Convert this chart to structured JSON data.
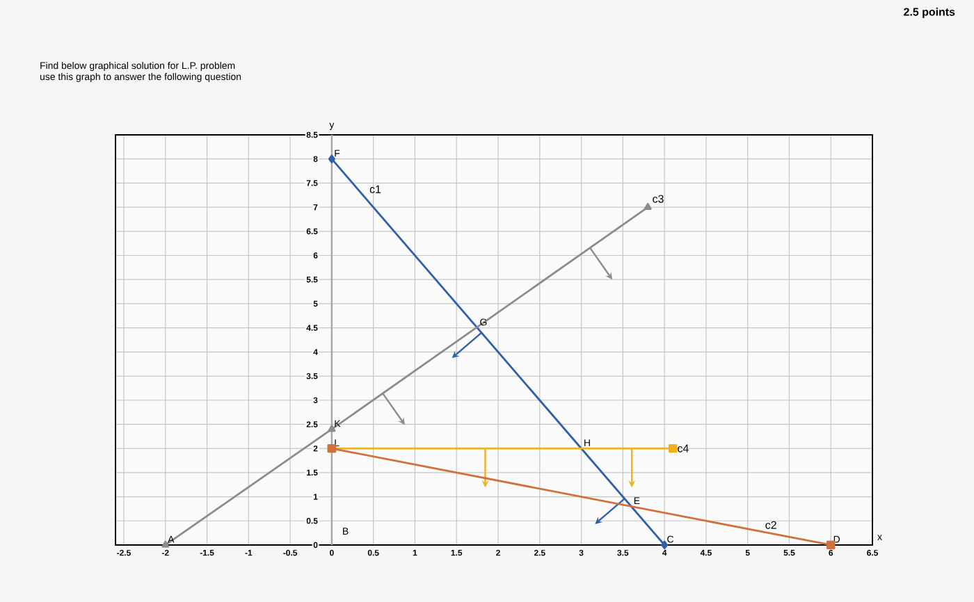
{
  "chart_data": {
    "type": "line",
    "title": "Find below graphical solution for L.P. problem",
    "subtitle": "use this graph to answer the following question",
    "xlabel": "x",
    "ylabel": "y",
    "series": [
      {
        "name": "c1",
        "color": "#2e5fa8",
        "marker": "diamond",
        "x": [
          0,
          4
        ],
        "values": [
          8,
          0
        ]
      },
      {
        "name": "c3",
        "color": "#8c8c8c",
        "marker": "triangle",
        "x": [
          -2,
          0,
          3.8
        ],
        "values": [
          0,
          2.4,
          7
        ]
      },
      {
        "name": "c4",
        "color": "#f0b020",
        "marker": "square",
        "x": [
          0,
          4.1
        ],
        "values": [
          2,
          2
        ]
      },
      {
        "name": "c2",
        "color": "#d0703c",
        "marker": "square",
        "x": [
          0,
          6
        ],
        "values": [
          2,
          0
        ]
      }
    ],
    "annotations": [
      {
        "text": "A",
        "x": -2,
        "y": 0
      },
      "B",
      {
        "text": "C",
        "x": 4,
        "y": 0
      },
      {
        "text": "D",
        "x": 6,
        "y": 0
      },
      {
        "text": "E",
        "x": 3.6,
        "y": 0.8
      },
      {
        "text": "F",
        "x": 0,
        "y": 8
      },
      {
        "text": "G",
        "x": 1.75,
        "y": 4.5
      },
      {
        "text": "H",
        "x": 3,
        "y": 2
      },
      {
        "text": "K",
        "x": 0,
        "y": 2.4
      },
      {
        "text": "L",
        "x": 0,
        "y": 2
      },
      "2.5 points"
    ],
    "xlim": [
      -2.6,
      6.5
    ],
    "ylim": [
      0,
      8.5
    ],
    "xticks": [
      -2.5,
      -2,
      -1.5,
      -1,
      -0.5,
      0,
      0.5,
      1,
      1.5,
      2,
      2.5,
      3,
      3.5,
      4,
      4.5,
      5,
      5.5,
      6,
      6.5
    ],
    "yticks": [
      0,
      0.5,
      1,
      1.5,
      2,
      2.5,
      3,
      3.5,
      4,
      4.5,
      5,
      5.5,
      6,
      6.5,
      7,
      7.5,
      8,
      8.5
    ],
    "grid": true
  }
}
